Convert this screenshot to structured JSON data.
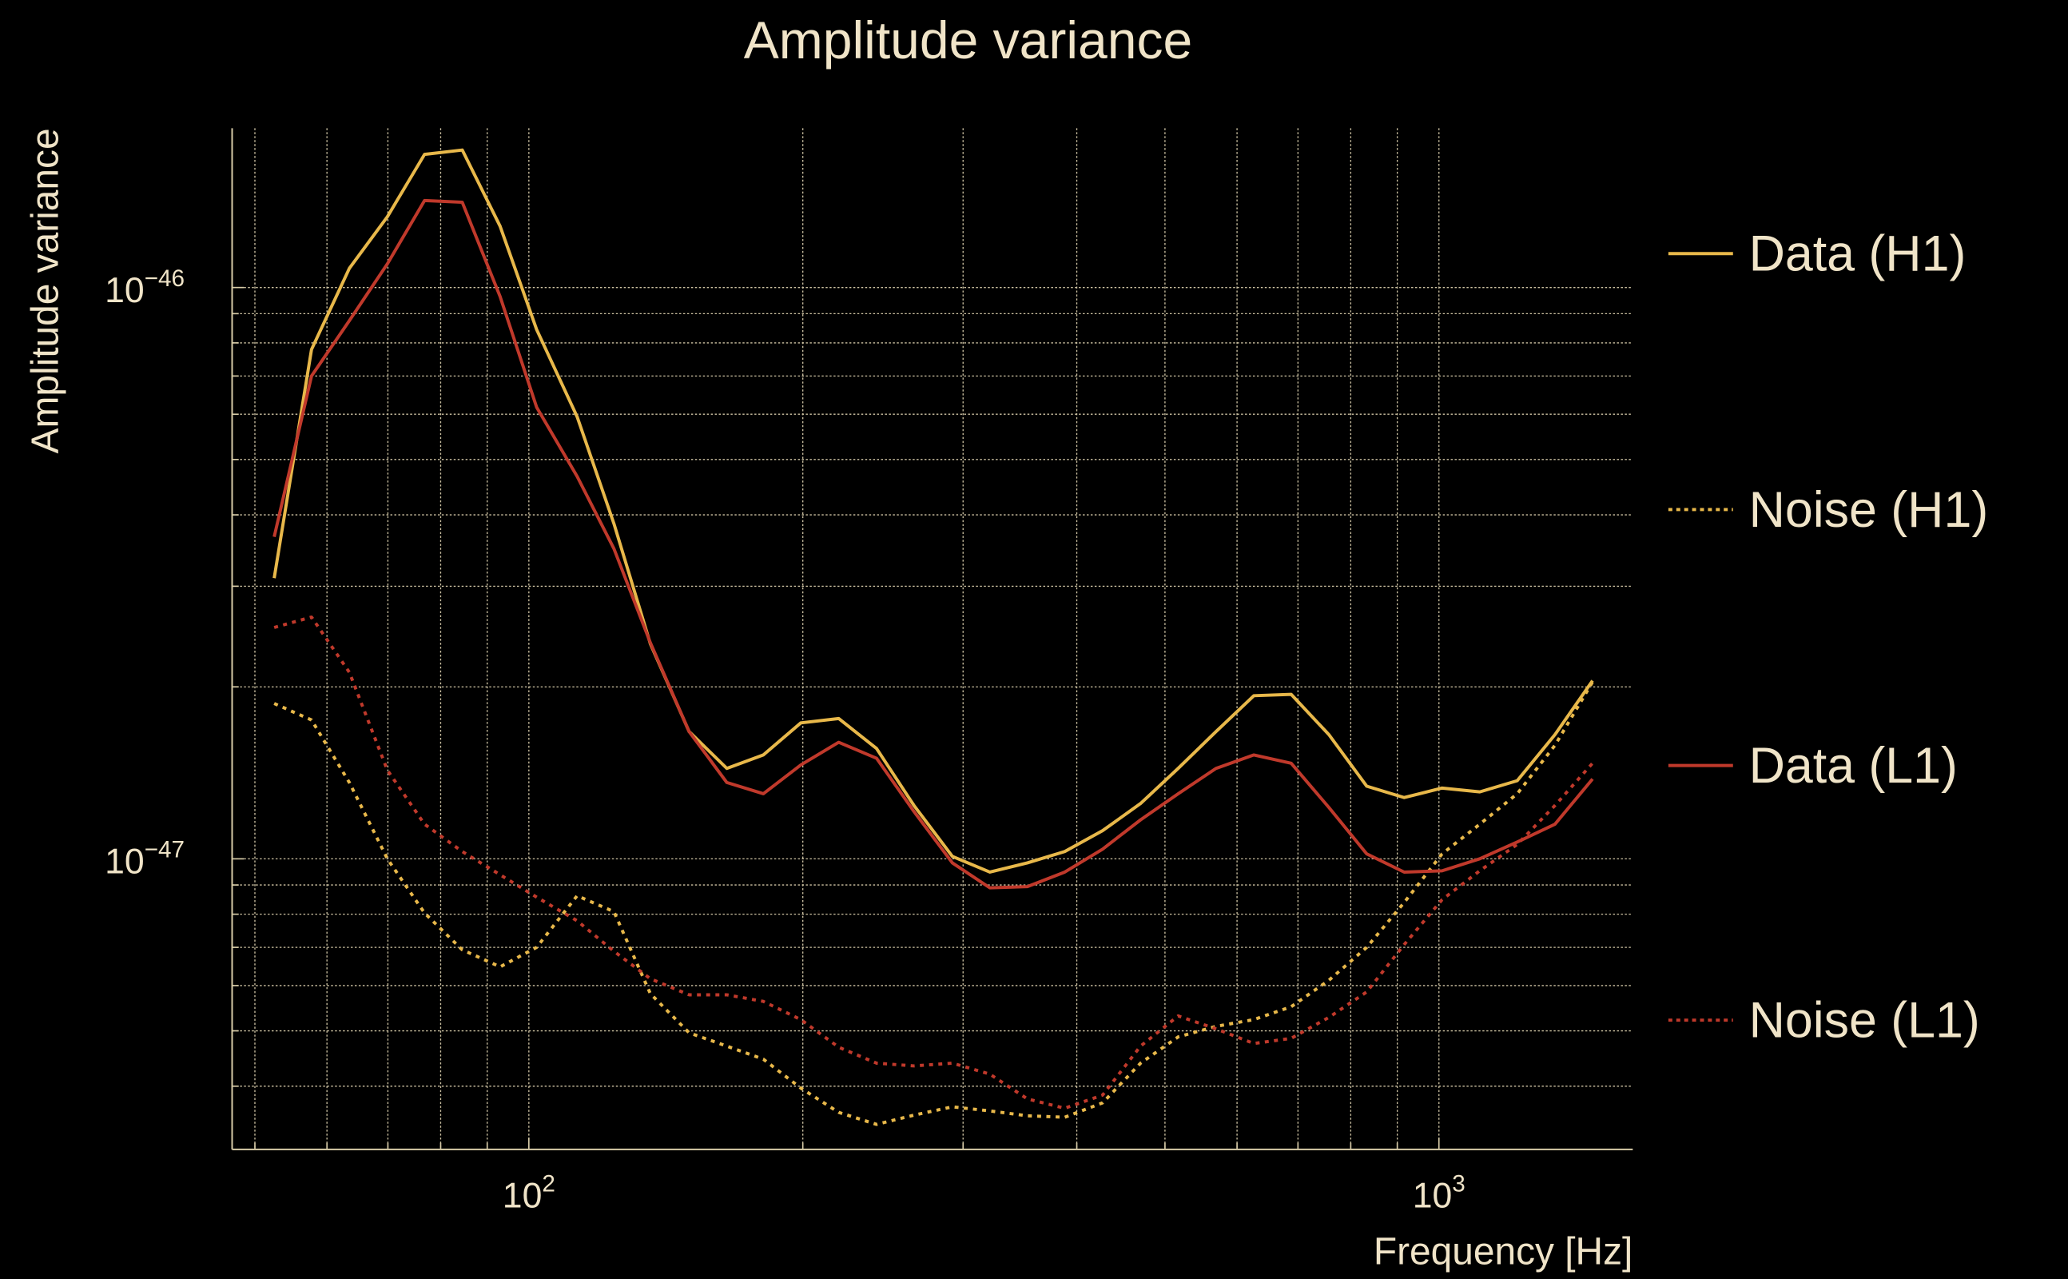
{
  "chart_data": {
    "type": "line",
    "title": "Amplitude variance",
    "xlabel": "Frequency [Hz]",
    "ylabel": "Amplitude variance",
    "xscale": "log",
    "yscale": "log",
    "xlim": [
      47.2,
      1633
    ],
    "ylim": [
      3.1e-48,
      1.9e-46
    ],
    "grid": true,
    "legend_placement": "right-outside",
    "x_ticks": [
      {
        "value": 100,
        "base": "10",
        "exp": "2"
      },
      {
        "value": 1000,
        "base": "10",
        "exp": "3"
      }
    ],
    "y_ticks": [
      {
        "value": 1e-46,
        "base": "10",
        "exp": "−46"
      },
      {
        "value": 1e-47,
        "base": "10",
        "exp": "−47"
      }
    ],
    "x": [
      52.5,
      57.7,
      63.5,
      69.9,
      76.8,
      84.5,
      93,
      102,
      113,
      124,
      136,
      150,
      165,
      181,
      199,
      219,
      241,
      265,
      292,
      321,
      353,
      388,
      427,
      470,
      517,
      569,
      626,
      688,
      757,
      833,
      916,
      1008,
      1109,
      1219,
      1341,
      1475
    ],
    "series": [
      {
        "name": "Data (H1)",
        "color": "#e8b84a",
        "style": "solid",
        "values": [
          3.1e-47,
          7.79e-47,
          1.08e-46,
          1.33e-46,
          1.71e-46,
          1.74e-46,
          1.28e-46,
          8.44e-47,
          5.94e-47,
          3.86e-47,
          2.38e-47,
          1.67e-47,
          1.44e-47,
          1.52e-47,
          1.73e-47,
          1.76e-47,
          1.56e-47,
          1.24e-47,
          1.01e-47,
          9.48e-48,
          9.84e-48,
          1.03e-47,
          1.12e-47,
          1.25e-47,
          1.44e-47,
          1.67e-47,
          1.93e-47,
          1.94e-47,
          1.65e-47,
          1.34e-47,
          1.28e-47,
          1.33e-47,
          1.31e-47,
          1.37e-47,
          1.65e-47,
          2.05e-47
        ]
      },
      {
        "name": "Noise (H1)",
        "color": "#e8b84a",
        "style": "dotted",
        "values": [
          1.87e-47,
          1.75e-47,
          1.36e-47,
          1e-47,
          8.04e-48,
          6.93e-48,
          6.47e-48,
          7e-48,
          8.62e-48,
          8.08e-48,
          5.81e-48,
          4.96e-48,
          4.7e-48,
          4.46e-48,
          3.97e-48,
          3.6e-48,
          3.43e-48,
          3.56e-48,
          3.68e-48,
          3.62e-48,
          3.55e-48,
          3.53e-48,
          3.74e-48,
          4.39e-48,
          4.88e-48,
          5.09e-48,
          5.23e-48,
          5.51e-48,
          6.13e-48,
          7e-48,
          8.39e-48,
          1.02e-47,
          1.15e-47,
          1.3e-47,
          1.58e-47,
          2.04e-47
        ]
      },
      {
        "name": "Data (L1)",
        "color": "#c0392b",
        "style": "solid",
        "values": [
          3.66e-47,
          7e-47,
          8.75e-47,
          1.1e-46,
          1.42e-46,
          1.41e-46,
          9.64e-47,
          6.17e-47,
          4.67e-47,
          3.49e-47,
          2.39e-47,
          1.67e-47,
          1.36e-47,
          1.3e-47,
          1.46e-47,
          1.6e-47,
          1.5e-47,
          1.21e-47,
          9.84e-48,
          8.9e-48,
          8.94e-48,
          9.48e-48,
          1.04e-47,
          1.17e-47,
          1.3e-47,
          1.44e-47,
          1.52e-47,
          1.47e-47,
          1.23e-47,
          1.02e-47,
          9.48e-48,
          9.53e-48,
          1e-47,
          1.07e-47,
          1.15e-47,
          1.38e-47
        ]
      },
      {
        "name": "Noise (L1)",
        "color": "#c0392b",
        "style": "dotted",
        "values": [
          2.54e-47,
          2.65e-47,
          2.12e-47,
          1.43e-47,
          1.15e-47,
          1.03e-47,
          9.38e-48,
          8.57e-48,
          7.79e-48,
          6.89e-48,
          6.17e-48,
          5.78e-48,
          5.78e-48,
          5.63e-48,
          5.23e-48,
          4.68e-48,
          4.39e-48,
          4.34e-48,
          4.39e-48,
          4.2e-48,
          3.8e-48,
          3.66e-48,
          3.86e-48,
          4.7e-48,
          5.31e-48,
          5.04e-48,
          4.75e-48,
          4.85e-48,
          5.28e-48,
          5.85e-48,
          7.08e-48,
          8.48e-48,
          9.53e-48,
          1.06e-47,
          1.24e-47,
          1.47e-47
        ]
      }
    ]
  }
}
